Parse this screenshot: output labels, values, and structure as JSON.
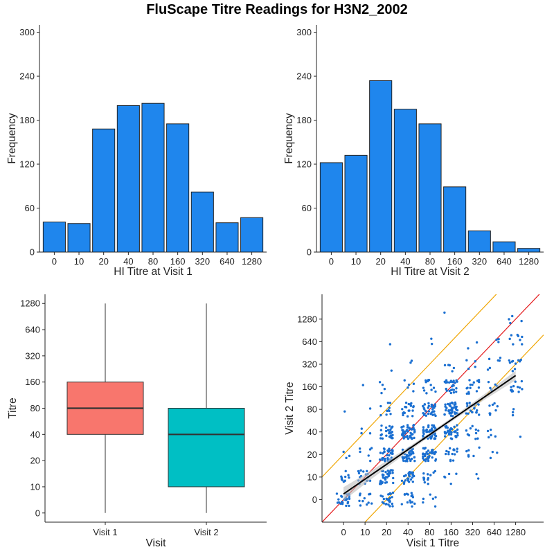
{
  "title": "FluScape Titre Readings for H3N2_2002",
  "colors": {
    "bar_fill": "#1f86ed",
    "bar_stroke": "#222222",
    "box_visit1": "#f8766d",
    "box_visit2": "#00bfc4",
    "scatter_point": "#1a6fd1",
    "identity_line": "#e41a1c",
    "band_line": "#f0a500",
    "fit_line": "#000000",
    "ci_band": "#bdbdbd"
  },
  "chart_data": [
    {
      "type": "bar",
      "panel": "top-left",
      "categories": [
        "0",
        "10",
        "20",
        "40",
        "80",
        "160",
        "320",
        "640",
        "1280"
      ],
      "values": [
        41,
        39,
        168,
        200,
        203,
        175,
        82,
        40,
        47
      ],
      "xlabel": "HI Titre at Visit 1",
      "ylabel": "Frequency",
      "yticks": [
        "0",
        "60",
        "120",
        "180",
        "240",
        "300"
      ],
      "ylim": [
        0,
        310
      ]
    },
    {
      "type": "bar",
      "panel": "top-right",
      "categories": [
        "0",
        "10",
        "20",
        "40",
        "80",
        "160",
        "320",
        "640",
        "1280"
      ],
      "values": [
        122,
        132,
        234,
        195,
        175,
        89,
        29,
        14,
        5
      ],
      "xlabel": "HI Titre at Visit 2",
      "ylabel": "Frequency",
      "yticks": [
        "0",
        "60",
        "120",
        "180",
        "240",
        "300"
      ],
      "ylim": [
        0,
        310
      ]
    },
    {
      "type": "box",
      "panel": "bottom-left",
      "categories": [
        "Visit 1",
        "Visit 2"
      ],
      "boxes": [
        {
          "name": "Visit 1",
          "min": 0,
          "q1": 3,
          "median": 4,
          "q3": 5,
          "max": 8
        },
        {
          "name": "Visit 2",
          "min": 0,
          "q1": 1,
          "median": 3,
          "q3": 4,
          "max": 8
        }
      ],
      "xlabel": "Visit",
      "ylabel": "Titre",
      "yticks": [
        "0",
        "10",
        "20",
        "40",
        "80",
        "160",
        "320",
        "640",
        "1280"
      ],
      "ylim": [
        -0.35,
        8.35
      ]
    },
    {
      "type": "scatter",
      "panel": "bottom-right",
      "xlabel": "Visit 1 Titre",
      "ylabel": "Visit 2 Titre",
      "xticks": [
        "0",
        "10",
        "20",
        "40",
        "80",
        "160",
        "320",
        "640",
        "1280"
      ],
      "yticks": [
        "0",
        "10",
        "20",
        "40",
        "80",
        "160",
        "320",
        "640",
        "1280"
      ],
      "xlim": [
        -1,
        9.3
      ],
      "ylim": [
        -1,
        9.1
      ],
      "identity_line": {
        "slope": 1,
        "intercept": 0
      },
      "band_lines": [
        {
          "slope": 1,
          "intercept": 2
        },
        {
          "slope": 1,
          "intercept": -2
        }
      ],
      "fit_line": {
        "x": [
          0,
          8
        ],
        "y": [
          0.25,
          5.5
        ]
      },
      "clusters": [
        {
          "x": 0,
          "y": 0,
          "n": 25
        },
        {
          "x": 0,
          "y": 1,
          "n": 10
        },
        {
          "x": 0,
          "y": 2,
          "n": 3
        },
        {
          "x": 0,
          "y": 4,
          "n": 1
        },
        {
          "x": 1,
          "y": 0,
          "n": 12
        },
        {
          "x": 1,
          "y": 1,
          "n": 18
        },
        {
          "x": 1,
          "y": 2,
          "n": 6
        },
        {
          "x": 1,
          "y": 3,
          "n": 3
        },
        {
          "x": 1,
          "y": 4,
          "n": 1
        },
        {
          "x": 1,
          "y": 5,
          "n": 1
        },
        {
          "x": 2,
          "y": 0,
          "n": 25
        },
        {
          "x": 2,
          "y": 1,
          "n": 35
        },
        {
          "x": 2,
          "y": 2,
          "n": 35
        },
        {
          "x": 2,
          "y": 3,
          "n": 25
        },
        {
          "x": 2,
          "y": 4,
          "n": 10
        },
        {
          "x": 2,
          "y": 5,
          "n": 4
        },
        {
          "x": 2,
          "y": 6,
          "n": 1
        },
        {
          "x": 2,
          "y": 7,
          "n": 1
        },
        {
          "x": 3,
          "y": 0,
          "n": 15
        },
        {
          "x": 3,
          "y": 1,
          "n": 25
        },
        {
          "x": 3,
          "y": 2,
          "n": 45
        },
        {
          "x": 3,
          "y": 3,
          "n": 45
        },
        {
          "x": 3,
          "y": 4,
          "n": 20
        },
        {
          "x": 3,
          "y": 5,
          "n": 5
        },
        {
          "x": 3,
          "y": 6,
          "n": 2
        },
        {
          "x": 4,
          "y": 0,
          "n": 6
        },
        {
          "x": 4,
          "y": 1,
          "n": 12
        },
        {
          "x": 4,
          "y": 2,
          "n": 40
        },
        {
          "x": 4,
          "y": 3,
          "n": 45
        },
        {
          "x": 4,
          "y": 4,
          "n": 35
        },
        {
          "x": 4,
          "y": 5,
          "n": 12
        },
        {
          "x": 4,
          "y": 7,
          "n": 2
        },
        {
          "x": 5,
          "y": 1,
          "n": 5
        },
        {
          "x": 5,
          "y": 2,
          "n": 15
        },
        {
          "x": 5,
          "y": 3,
          "n": 35
        },
        {
          "x": 5,
          "y": 4,
          "n": 40
        },
        {
          "x": 5,
          "y": 5,
          "n": 25
        },
        {
          "x": 5,
          "y": 6,
          "n": 5
        },
        {
          "x": 5,
          "y": 8,
          "n": 1
        },
        {
          "x": 6,
          "y": 1,
          "n": 2
        },
        {
          "x": 6,
          "y": 2,
          "n": 6
        },
        {
          "x": 6,
          "y": 3,
          "n": 10
        },
        {
          "x": 6,
          "y": 4,
          "n": 20
        },
        {
          "x": 6,
          "y": 5,
          "n": 15
        },
        {
          "x": 6,
          "y": 6,
          "n": 4
        },
        {
          "x": 6,
          "y": 7,
          "n": 2
        },
        {
          "x": 7,
          "y": 2,
          "n": 3
        },
        {
          "x": 7,
          "y": 3,
          "n": 5
        },
        {
          "x": 7,
          "y": 4,
          "n": 8
        },
        {
          "x": 7,
          "y": 5,
          "n": 6
        },
        {
          "x": 7,
          "y": 6,
          "n": 6
        },
        {
          "x": 7,
          "y": 7,
          "n": 3
        },
        {
          "x": 8,
          "y": 3,
          "n": 1
        },
        {
          "x": 8,
          "y": 4,
          "n": 3
        },
        {
          "x": 8,
          "y": 5,
          "n": 12
        },
        {
          "x": 8,
          "y": 6,
          "n": 10
        },
        {
          "x": 8,
          "y": 7,
          "n": 8
        },
        {
          "x": 8,
          "y": 8,
          "n": 4
        }
      ]
    }
  ]
}
